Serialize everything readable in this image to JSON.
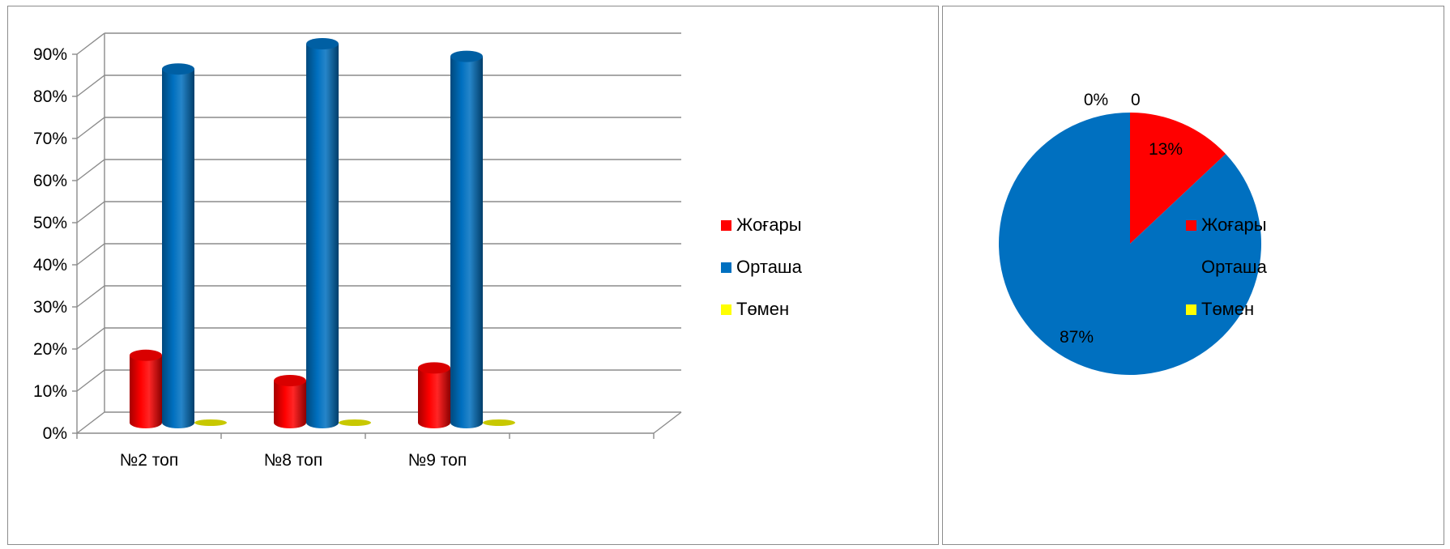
{
  "chart_data": [
    {
      "type": "bar",
      "style": "3d-cylinder",
      "categories": [
        "№2 топ",
        "№8 топ",
        "№9 топ"
      ],
      "series": [
        {
          "name": "Жоғары",
          "values": [
            0.16,
            0.1,
            0.13
          ],
          "color": "#ff0000"
        },
        {
          "name": "Орташа",
          "values": [
            0.84,
            0.9,
            0.87
          ],
          "color": "#0070c0"
        },
        {
          "name": "Төмен",
          "values": [
            0.0,
            0.0,
            0.0
          ],
          "color": "#ffff00"
        }
      ],
      "ylim": [
        0,
        0.9
      ],
      "yticks": [
        "0%",
        "10%",
        "20%",
        "30%",
        "40%",
        "50%",
        "60%",
        "70%",
        "80%",
        "90%"
      ],
      "grid": true,
      "legend": "right"
    },
    {
      "type": "pie",
      "slices": [
        {
          "name": "Жоғары",
          "value": 0.13,
          "label": "13%",
          "color": "#ff0000"
        },
        {
          "name": "Орташа",
          "value": 0.87,
          "label": "87%",
          "color": "#0070c0"
        },
        {
          "name": "Төмен",
          "value": 0.0,
          "label": "0%",
          "color": "#ffff00"
        }
      ],
      "extra_label": "0",
      "legend": "right"
    }
  ]
}
